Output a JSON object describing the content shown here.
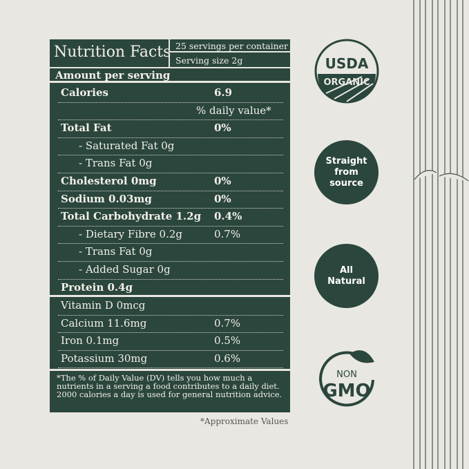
{
  "panel": {
    "title": "Nutrition Facts",
    "servings": "25 servings per container",
    "serving_size": "Serving size 2g",
    "amount": "Amount per serving",
    "rows": [
      {
        "name": "Calories",
        "value": "6.9"
      },
      {
        "name": "",
        "value": "% daily value*"
      },
      {
        "name": "Total Fat",
        "value": "0%"
      },
      {
        "name": "- Saturated Fat 0g",
        "value": ""
      },
      {
        "name": "- Trans Fat 0g",
        "value": ""
      },
      {
        "name": "Cholesterol 0mg",
        "value": "0%"
      },
      {
        "name": "Sodium 0.03mg",
        "value": "0%"
      },
      {
        "name": "Total Carbohydrate 1.2g",
        "value": "0.4%"
      },
      {
        "name": "- Dietary Fibre 0.2g",
        "value": "0.7%"
      },
      {
        "name": "- Trans Fat 0g",
        "value": ""
      },
      {
        "name": "- Added Sugar 0g",
        "value": ""
      },
      {
        "name": "Protein 0.4g",
        "value": ""
      }
    ],
    "minerals": [
      {
        "name": "Vitamin D 0mcg",
        "value": ""
      },
      {
        "name": "Calcium 11.6mg",
        "value": "0.7%"
      },
      {
        "name": "Iron 0.1mg",
        "value": "0.5%"
      },
      {
        "name": "Potassium 30mg",
        "value": "0.6%"
      }
    ],
    "footnote": "*The % of Daily Value (DV) tells you how much a nutrients in a serving a food contributes to a daily diet. 2000 calories a day is used for general nutrition advice."
  },
  "approx": "*Approximate Values",
  "badges": {
    "usda_top": "USDA",
    "usda_bottom": "ORGANIC",
    "straight": "Straight from source",
    "natural": "All Natural",
    "non": "NON",
    "gmo": "GMO"
  },
  "colors": {
    "green": "#2b463c",
    "background": "#e9e7e2"
  }
}
